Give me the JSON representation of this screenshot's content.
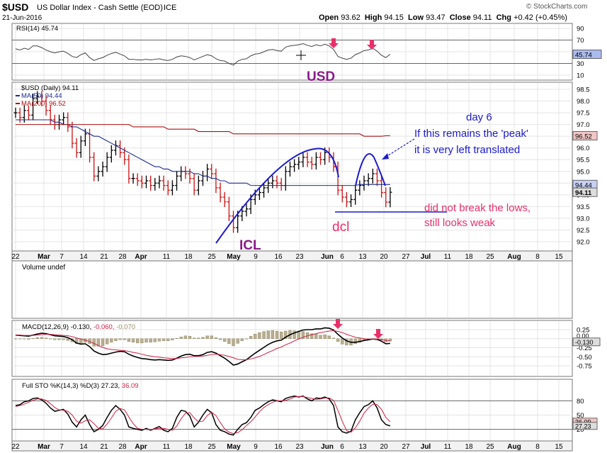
{
  "header": {
    "symbol": "$USD",
    "name": "US Dollar Index - Cash Settle (EOD)",
    "exchange": "ICE",
    "date": "21-Jun-2016",
    "source": "© StockCharts.com",
    "ohlc": {
      "open_label": "Open",
      "open": "93.62",
      "high_label": "High",
      "high": "94.15",
      "low_label": "Low",
      "low": "93.47",
      "close_label": "Close",
      "close": "94.11",
      "chg_label": "Chg",
      "chg": "+0.42 (+0.45%)"
    }
  },
  "panels": {
    "rsi": {
      "label": "RSI(14) 45.74",
      "value": "45.74",
      "ticks": [
        "90",
        "70",
        "50",
        "30",
        "10"
      ]
    },
    "price": {
      "label": "$USD (Daily) 94.11",
      "ma50_label": "MA(50) 94.44",
      "ma200_label": "MA(200) 96.52",
      "ma50_value": "94.44",
      "ma200_value": "96.52",
      "last_value": "94.11",
      "ticks": [
        "98.5",
        "98.0",
        "97.5",
        "97.0",
        "96.5",
        "96.0",
        "95.5",
        "95.0",
        "94.5",
        "94.0",
        "93.5",
        "93.0",
        "92.5",
        "92.0"
      ]
    },
    "volume": {
      "label": "Volume undef"
    },
    "macd": {
      "label_main": "MACD(12,26,9)",
      "v1": "-0.130",
      "v2": "-0.060",
      "v3": "-0.070",
      "ticks": [
        "0.25",
        "0.00",
        "-0.25",
        "-0.50",
        "-0.75"
      ],
      "marker1": "0.060",
      "marker2": "-0.130"
    },
    "sto": {
      "label_main": "Full STO %K(14,3) %D(3)",
      "k": "27.23",
      "d": "36.09",
      "ticks": [
        "80",
        "50",
        "20"
      ]
    }
  },
  "x_axis": [
    "22",
    "Mar",
    "7",
    "14",
    "21",
    "28",
    "Apr",
    "11",
    "18",
    "25",
    "May",
    "9",
    "16",
    "23",
    "Jun",
    "6",
    "13",
    "20",
    "27",
    "Jul",
    "11",
    "18",
    "25",
    "Aug",
    "8",
    "15"
  ],
  "annotations": {
    "usd": "USD",
    "icl": "ICL",
    "dcl": "dcl",
    "day6": "day 6",
    "peak1": "If this remains the 'peak'",
    "peak2": "it is very left translated",
    "lows1": "did not break the lows,",
    "lows2": "still looks weak"
  },
  "colors": {
    "annotation_blue": "#1a1acc",
    "annotation_purple": "#8a1a8a",
    "annotation_pink": "#e8306a",
    "up": "#000000",
    "down": "#cc1111",
    "ma50": "#1c2c8c",
    "ma200": "#aa1111",
    "hist": "#b8ae8e"
  },
  "chart_data": {
    "type": "ohlc",
    "title": "$USD US Dollar Index - Cash Settle (EOD)",
    "dates": [
      "2016-02-22",
      "2016-02-23",
      "2016-02-24",
      "2016-02-25",
      "2016-02-26",
      "2016-02-29",
      "2016-03-01",
      "2016-03-02",
      "2016-03-03",
      "2016-03-04",
      "2016-03-07",
      "2016-03-08",
      "2016-03-09",
      "2016-03-10",
      "2016-03-11",
      "2016-03-14",
      "2016-03-15",
      "2016-03-16",
      "2016-03-17",
      "2016-03-18",
      "2016-03-21",
      "2016-03-22",
      "2016-03-23",
      "2016-03-24",
      "2016-03-25",
      "2016-03-28",
      "2016-03-29",
      "2016-03-30",
      "2016-03-31",
      "2016-04-01",
      "2016-04-04",
      "2016-04-05",
      "2016-04-06",
      "2016-04-07",
      "2016-04-08",
      "2016-04-11",
      "2016-04-12",
      "2016-04-13",
      "2016-04-14",
      "2016-04-15",
      "2016-04-18",
      "2016-04-19",
      "2016-04-20",
      "2016-04-21",
      "2016-04-22",
      "2016-04-25",
      "2016-04-26",
      "2016-04-27",
      "2016-04-28",
      "2016-04-29",
      "2016-05-02",
      "2016-05-03",
      "2016-05-04",
      "2016-05-05",
      "2016-05-06",
      "2016-05-09",
      "2016-05-10",
      "2016-05-11",
      "2016-05-12",
      "2016-05-13",
      "2016-05-16",
      "2016-05-17",
      "2016-05-18",
      "2016-05-19",
      "2016-05-20",
      "2016-05-23",
      "2016-05-24",
      "2016-05-25",
      "2016-05-26",
      "2016-05-27",
      "2016-05-30",
      "2016-05-31",
      "2016-06-01",
      "2016-06-02",
      "2016-06-03",
      "2016-06-06",
      "2016-06-07",
      "2016-06-08",
      "2016-06-09",
      "2016-06-10",
      "2016-06-13",
      "2016-06-14",
      "2016-06-15",
      "2016-06-16",
      "2016-06-17",
      "2016-06-20",
      "2016-06-21"
    ],
    "close": [
      97.5,
      97.3,
      97.6,
      97.4,
      98.1,
      98.2,
      98.0,
      97.6,
      97.2,
      97.0,
      97.2,
      97.3,
      96.9,
      96.2,
      95.8,
      96.3,
      96.6,
      95.6,
      94.8,
      95.0,
      95.2,
      95.6,
      95.9,
      96.1,
      95.8,
      95.5,
      94.7,
      94.7,
      94.6,
      94.5,
      94.6,
      94.4,
      94.5,
      94.6,
      94.4,
      94.2,
      94.4,
      94.8,
      95.0,
      94.9,
      94.7,
      94.2,
      94.6,
      94.8,
      95.1,
      94.9,
      94.3,
      93.9,
      93.7,
      93.1,
      92.6,
      93.1,
      93.3,
      93.4,
      93.8,
      94.0,
      94.1,
      94.3,
      94.5,
      94.6,
      94.5,
      94.4,
      95.0,
      95.2,
      95.3,
      95.4,
      95.6,
      95.4,
      95.3,
      95.6,
      95.5,
      95.8,
      95.6,
      95.2,
      94.2,
      93.9,
      93.7,
      93.8,
      94.2,
      94.4,
      94.6,
      94.7,
      94.9,
      94.6,
      94.1,
      93.69,
      94.11
    ],
    "ma50": [
      97.2,
      97.2,
      97.2,
      97.2,
      97.2,
      97.2,
      97.2,
      97.2,
      97.2,
      97.1,
      97.1,
      97.0,
      97.0,
      96.9,
      96.9,
      96.8,
      96.7,
      96.6,
      96.5,
      96.5,
      96.4,
      96.3,
      96.2,
      96.1,
      96.0,
      95.9,
      95.8,
      95.7,
      95.6,
      95.5,
      95.4,
      95.3,
      95.2,
      95.2,
      95.1,
      95.1,
      95.0,
      95.0,
      95.0,
      95.0,
      95.0,
      94.9,
      94.9,
      94.8,
      94.8,
      94.7,
      94.7,
      94.6,
      94.6,
      94.5,
      94.5,
      94.5,
      94.5,
      94.5,
      94.4,
      94.4,
      94.4,
      94.4,
      94.4,
      94.4,
      94.4,
      94.4,
      94.4,
      94.4,
      94.4,
      94.4,
      94.4,
      94.4,
      94.4,
      94.4,
      94.4,
      94.4,
      94.4,
      94.4,
      94.4,
      94.4,
      94.4,
      94.4,
      94.4,
      94.44,
      94.44,
      94.44,
      94.44,
      94.44,
      94.44,
      94.44,
      94.44
    ],
    "ma200": [
      97.0,
      97.0,
      97.0,
      97.0,
      97.0,
      97.0,
      97.0,
      97.0,
      97.0,
      97.0,
      97.0,
      97.0,
      97.0,
      97.0,
      97.0,
      97.0,
      97.0,
      97.0,
      97.0,
      97.0,
      97.0,
      97.0,
      97.0,
      97.0,
      97.0,
      97.0,
      97.0,
      96.9,
      96.9,
      96.9,
      96.9,
      96.9,
      96.9,
      96.9,
      96.9,
      96.8,
      96.8,
      96.8,
      96.8,
      96.8,
      96.8,
      96.8,
      96.7,
      96.7,
      96.7,
      96.7,
      96.7,
      96.7,
      96.7,
      96.7,
      96.6,
      96.6,
      96.6,
      96.6,
      96.6,
      96.6,
      96.6,
      96.6,
      96.6,
      96.6,
      96.6,
      96.6,
      96.6,
      96.6,
      96.6,
      96.6,
      96.6,
      96.6,
      96.6,
      96.6,
      96.6,
      96.6,
      96.6,
      96.6,
      96.6,
      96.6,
      96.6,
      96.6,
      96.6,
      96.6,
      96.5,
      96.5,
      96.5,
      96.5,
      96.5,
      96.52,
      96.52
    ],
    "rsi": [
      55,
      53,
      56,
      54,
      60,
      60,
      57,
      53,
      50,
      48,
      50,
      51,
      47,
      42,
      40,
      45,
      48,
      40,
      35,
      38,
      40,
      44,
      47,
      49,
      46,
      43,
      37,
      37,
      36,
      36,
      37,
      36,
      37,
      38,
      36,
      35,
      37,
      41,
      43,
      42,
      40,
      36,
      39,
      42,
      45,
      43,
      38,
      35,
      34,
      30,
      27,
      34,
      37,
      38,
      43,
      46,
      47,
      50,
      53,
      54,
      52,
      51,
      58,
      60,
      61,
      62,
      64,
      61,
      59,
      62,
      60,
      63,
      60,
      54,
      42,
      39,
      37,
      39,
      45,
      48,
      52,
      53,
      56,
      51,
      44,
      40,
      45.74
    ],
    "macd": [
      0.1,
      0.09,
      0.08,
      0.07,
      0.1,
      0.13,
      0.15,
      0.14,
      0.11,
      0.08,
      0.07,
      0.06,
      0.03,
      -0.03,
      -0.12,
      -0.15,
      -0.14,
      -0.22,
      -0.34,
      -0.4,
      -0.44,
      -0.43,
      -0.4,
      -0.37,
      -0.35,
      -0.36,
      -0.43,
      -0.48,
      -0.52,
      -0.55,
      -0.56,
      -0.58,
      -0.59,
      -0.58,
      -0.59,
      -0.6,
      -0.59,
      -0.54,
      -0.48,
      -0.44,
      -0.43,
      -0.47,
      -0.47,
      -0.44,
      -0.38,
      -0.36,
      -0.4,
      -0.47,
      -0.54,
      -0.63,
      -0.73,
      -0.7,
      -0.64,
      -0.58,
      -0.49,
      -0.4,
      -0.32,
      -0.24,
      -0.16,
      -0.1,
      -0.06,
      -0.04,
      0.04,
      0.11,
      0.16,
      0.2,
      0.24,
      0.25,
      0.25,
      0.27,
      0.27,
      0.3,
      0.29,
      0.24,
      0.12,
      0.02,
      -0.06,
      -0.1,
      -0.1,
      -0.08,
      -0.05,
      -0.03,
      -0.01,
      -0.02,
      -0.07,
      -0.14,
      -0.13
    ],
    "macd_signal": [
      0.1,
      0.1,
      0.09,
      0.09,
      0.09,
      0.1,
      0.11,
      0.12,
      0.12,
      0.11,
      0.1,
      0.09,
      0.08,
      0.06,
      0.02,
      -0.01,
      -0.04,
      -0.08,
      -0.13,
      -0.19,
      -0.24,
      -0.28,
      -0.3,
      -0.31,
      -0.32,
      -0.33,
      -0.35,
      -0.38,
      -0.4,
      -0.43,
      -0.46,
      -0.48,
      -0.5,
      -0.51,
      -0.53,
      -0.54,
      -0.55,
      -0.55,
      -0.53,
      -0.52,
      -0.5,
      -0.49,
      -0.49,
      -0.48,
      -0.46,
      -0.44,
      -0.43,
      -0.44,
      -0.46,
      -0.49,
      -0.53,
      -0.57,
      -0.58,
      -0.58,
      -0.56,
      -0.53,
      -0.49,
      -0.44,
      -0.38,
      -0.33,
      -0.27,
      -0.23,
      -0.17,
      -0.12,
      -0.06,
      -0.01,
      0.04,
      0.08,
      0.11,
      0.14,
      0.17,
      0.19,
      0.21,
      0.22,
      0.2,
      0.17,
      0.12,
      0.08,
      0.04,
      0.02,
      0.0,
      -0.01,
      -0.01,
      -0.01,
      -0.03,
      -0.05,
      -0.06
    ],
    "sto_k": [
      70,
      72,
      78,
      80,
      85,
      86,
      82,
      75,
      65,
      58,
      60,
      62,
      52,
      35,
      25,
      40,
      50,
      30,
      15,
      20,
      28,
      45,
      60,
      70,
      62,
      50,
      25,
      22,
      20,
      18,
      22,
      18,
      22,
      26,
      18,
      15,
      22,
      45,
      60,
      58,
      48,
      25,
      35,
      50,
      62,
      55,
      30,
      18,
      15,
      10,
      8,
      20,
      30,
      34,
      45,
      60,
      65,
      72,
      78,
      82,
      80,
      78,
      85,
      88,
      90,
      88,
      90,
      84,
      80,
      86,
      85,
      88,
      84,
      70,
      25,
      15,
      12,
      16,
      40,
      55,
      68,
      72,
      80,
      65,
      40,
      30,
      27.23
    ],
    "sto_d": [
      68,
      70,
      73,
      77,
      81,
      84,
      84,
      81,
      74,
      66,
      61,
      60,
      58,
      50,
      37,
      33,
      38,
      40,
      32,
      22,
      21,
      31,
      44,
      58,
      64,
      61,
      46,
      32,
      22,
      20,
      20,
      19,
      21,
      22,
      22,
      20,
      18,
      27,
      42,
      54,
      55,
      44,
      36,
      37,
      49,
      56,
      49,
      34,
      21,
      14,
      11,
      13,
      19,
      28,
      36,
      46,
      57,
      66,
      72,
      77,
      80,
      80,
      81,
      84,
      88,
      89,
      89,
      87,
      85,
      83,
      84,
      86,
      86,
      81,
      60,
      37,
      17,
      14,
      23,
      37,
      54,
      65,
      73,
      72,
      62,
      45,
      36.09
    ]
  }
}
